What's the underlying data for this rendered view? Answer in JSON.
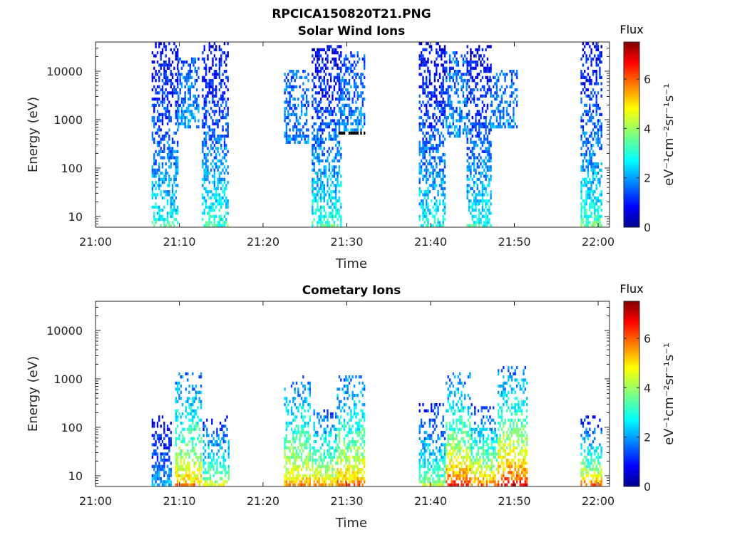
{
  "figure": {
    "title": "RPCICA150820T21.PNG"
  },
  "chart_data": [
    {
      "type": "heatmap",
      "title": "Solar Wind Ions",
      "xlabel": "Time",
      "ylabel": "Energy (eV)",
      "x_ticks": [
        "21:00",
        "21:10",
        "21:20",
        "21:30",
        "21:40",
        "21:50",
        "22:00"
      ],
      "y_scale": "log",
      "y_ticks": [
        "10",
        "100",
        "1000",
        "10000"
      ],
      "ylim": [
        6,
        40000
      ],
      "colorbar": {
        "title": "Flux",
        "label": "eV⁻¹cm⁻²sr⁻¹s⁻¹",
        "ticks": [
          "0",
          "2",
          "4",
          "6"
        ],
        "range": [
          0,
          7.5
        ],
        "colormap": "jet"
      },
      "bursts": [
        {
          "t_start_min": 6.7,
          "t_end_min": 9.8,
          "e_min_ev": 6,
          "e_max_ev": 35000,
          "flux_low_energy": 3.2,
          "flux_high_energy": 0.8
        },
        {
          "t_start_min": 9.8,
          "t_end_min": 12.2,
          "e_min_ev": 600,
          "e_max_ev": 15000,
          "flux_low_energy": 2.2,
          "flux_high_energy": 1.6
        },
        {
          "t_start_min": 12.7,
          "t_end_min": 15.8,
          "e_min_ev": 6,
          "e_max_ev": 35000,
          "flux_low_energy": 3.3,
          "flux_high_energy": 0.8
        },
        {
          "t_start_min": 22.5,
          "t_end_min": 25.3,
          "e_min_ev": 300,
          "e_max_ev": 9000,
          "flux_low_energy": 2.0,
          "flux_high_energy": 1.6
        },
        {
          "t_start_min": 25.8,
          "t_end_min": 29.2,
          "e_min_ev": 6,
          "e_max_ev": 30000,
          "flux_low_energy": 3.4,
          "flux_high_energy": 0.8
        },
        {
          "t_start_min": 29.0,
          "t_end_min": 32.0,
          "e_min_ev": 500,
          "e_max_ev": 20000,
          "flux_low_energy": 2.1,
          "flux_high_energy": 1.5
        },
        {
          "t_start_min": 38.6,
          "t_end_min": 41.8,
          "e_min_ev": 6,
          "e_max_ev": 35000,
          "flux_low_energy": 3.0,
          "flux_high_energy": 0.8
        },
        {
          "t_start_min": 41.8,
          "t_end_min": 44.3,
          "e_min_ev": 400,
          "e_max_ev": 20000,
          "flux_low_energy": 2.1,
          "flux_high_energy": 1.6
        },
        {
          "t_start_min": 44.3,
          "t_end_min": 47.3,
          "e_min_ev": 6,
          "e_max_ev": 30000,
          "flux_low_energy": 3.2,
          "flux_high_energy": 0.8
        },
        {
          "t_start_min": 47.0,
          "t_end_min": 50.3,
          "e_min_ev": 600,
          "e_max_ev": 9000,
          "flux_low_energy": 2.1,
          "flux_high_energy": 1.6
        },
        {
          "t_start_min": 57.9,
          "t_end_min": 60.5,
          "e_min_ev": 6,
          "e_max_ev": 35000,
          "flux_low_energy": 3.6,
          "flux_high_energy": 0.8
        }
      ]
    },
    {
      "type": "heatmap",
      "title": "Cometary Ions",
      "xlabel": "Time",
      "ylabel": "Energy (eV)",
      "x_ticks": [
        "21:00",
        "21:10",
        "21:20",
        "21:30",
        "21:40",
        "21:50",
        "22:00"
      ],
      "y_scale": "log",
      "y_ticks": [
        "10",
        "100",
        "1000",
        "10000"
      ],
      "ylim": [
        6,
        40000
      ],
      "colorbar": {
        "title": "Flux",
        "label": "eV⁻¹cm⁻²sr⁻¹s⁻¹",
        "ticks": [
          "0",
          "2",
          "4",
          "6"
        ],
        "range": [
          0,
          7.5
        ],
        "colormap": "jet"
      },
      "bursts": [
        {
          "t_start_min": 6.7,
          "t_end_min": 9.0,
          "e_min_ev": 6,
          "e_max_ev": 150,
          "flux_low_energy": 2.4,
          "flux_high_energy": 0.8
        },
        {
          "t_start_min": 9.5,
          "t_end_min": 12.5,
          "e_min_ev": 6,
          "e_max_ev": 1200,
          "flux_low_energy": 5.5,
          "flux_high_energy": 1.8
        },
        {
          "t_start_min": 12.8,
          "t_end_min": 15.8,
          "e_min_ev": 6,
          "e_max_ev": 150,
          "flux_low_energy": 4.5,
          "flux_high_energy": 1.2
        },
        {
          "t_start_min": 22.5,
          "t_end_min": 25.5,
          "e_min_ev": 6,
          "e_max_ev": 1000,
          "flux_low_energy": 5.5,
          "flux_high_energy": 1.8
        },
        {
          "t_start_min": 25.8,
          "t_end_min": 28.8,
          "e_min_ev": 6,
          "e_max_ev": 200,
          "flux_low_energy": 5.5,
          "flux_high_energy": 1.6
        },
        {
          "t_start_min": 28.8,
          "t_end_min": 32.0,
          "e_min_ev": 6,
          "e_max_ev": 1000,
          "flux_low_energy": 5.8,
          "flux_high_energy": 1.8
        },
        {
          "t_start_min": 38.6,
          "t_end_min": 41.8,
          "e_min_ev": 6,
          "e_max_ev": 250,
          "flux_low_energy": 4.2,
          "flux_high_energy": 1.2
        },
        {
          "t_start_min": 41.8,
          "t_end_min": 44.8,
          "e_min_ev": 6,
          "e_max_ev": 1100,
          "flux_low_energy": 6.5,
          "flux_high_energy": 1.8
        },
        {
          "t_start_min": 44.8,
          "t_end_min": 48.0,
          "e_min_ev": 6,
          "e_max_ev": 250,
          "flux_low_energy": 6.0,
          "flux_high_energy": 1.4
        },
        {
          "t_start_min": 48.0,
          "t_end_min": 51.5,
          "e_min_ev": 6,
          "e_max_ev": 1500,
          "flux_low_energy": 6.8,
          "flux_high_energy": 1.8
        },
        {
          "t_start_min": 57.9,
          "t_end_min": 60.5,
          "e_min_ev": 6,
          "e_max_ev": 150,
          "flux_low_energy": 6.0,
          "flux_high_energy": 1.0
        }
      ]
    }
  ]
}
